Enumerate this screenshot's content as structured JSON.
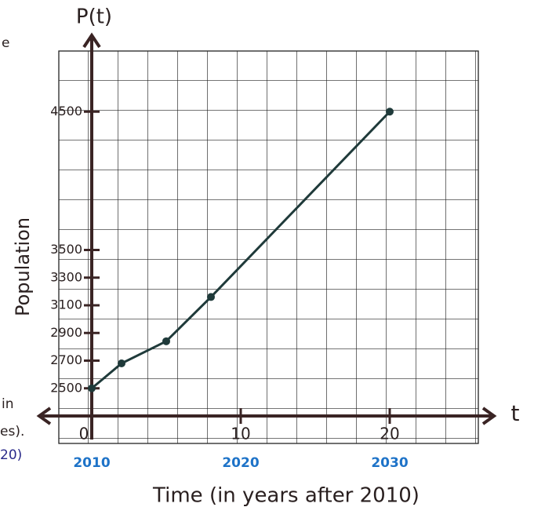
{
  "chart_data": {
    "type": "line",
    "y_axis_name": "P(t)",
    "x_axis_name": "t",
    "ylabel": "Population",
    "xlabel": "Time (in years after 2010)",
    "x": [
      0,
      2,
      5,
      8,
      20
    ],
    "series": [
      {
        "color": "#1f3a3a",
        "values": [
          2500,
          2680,
          2840,
          3160,
          4500
        ]
      }
    ],
    "xlim": [
      -3,
      27
    ],
    "xticks": [
      0,
      10,
      20
    ],
    "year_labels": [
      "2010",
      "2020",
      "2030"
    ],
    "year_label_color": "#1e73c8",
    "ylim": [
      2300,
      4700
    ],
    "yticks": [
      2500,
      2700,
      2900,
      3100,
      3300,
      3500,
      4500
    ],
    "grid": true
  },
  "page_fragments": [
    "e",
    "in",
    "es).",
    "20)"
  ]
}
